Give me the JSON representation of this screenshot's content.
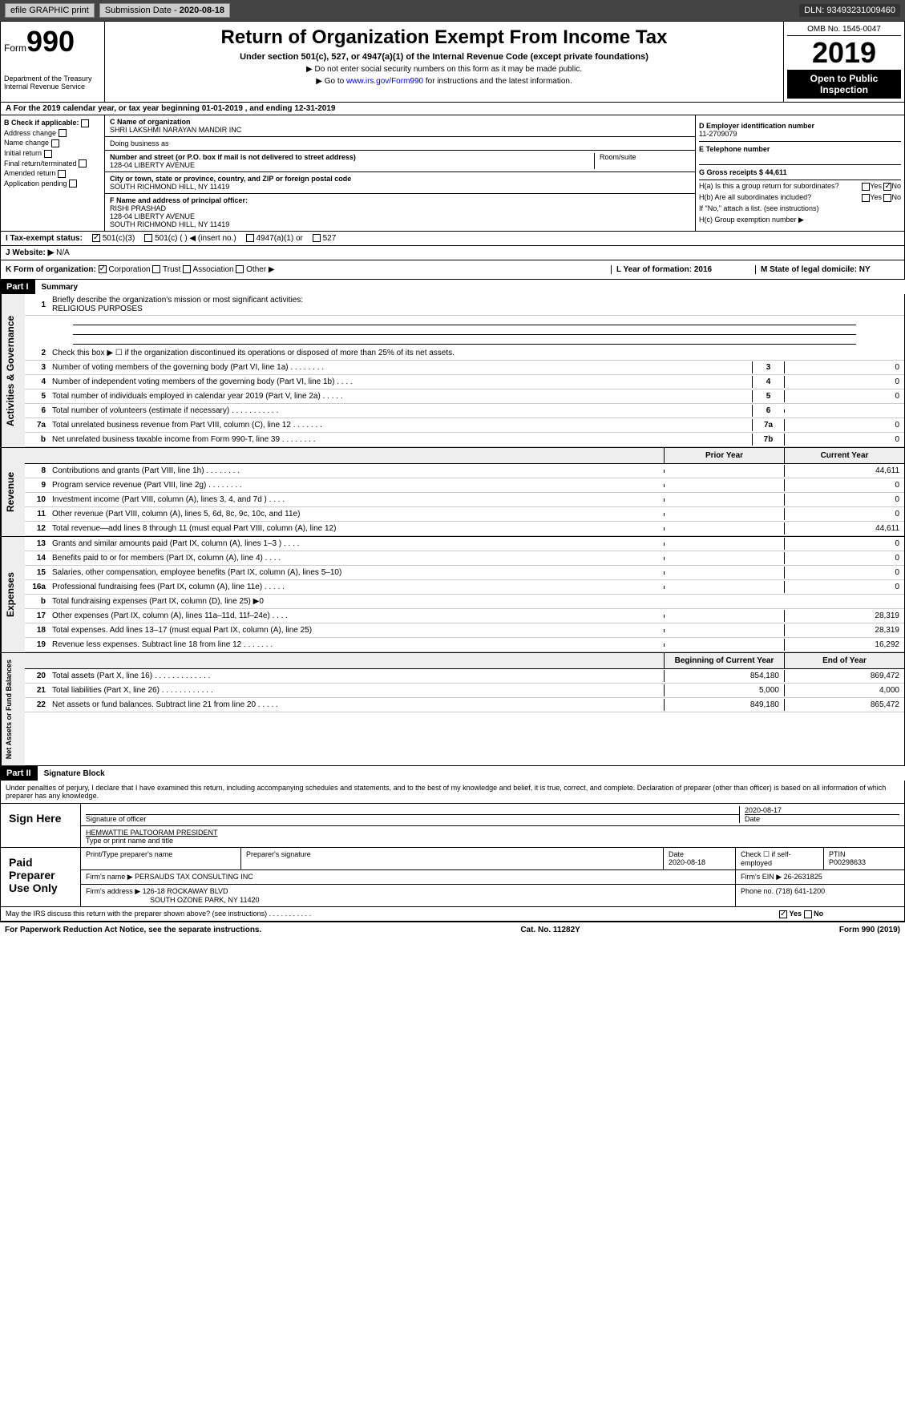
{
  "header": {
    "efile": "efile GRAPHIC print",
    "subdate_label": "Submission Date - ",
    "subdate": "2020-08-18",
    "dln": "DLN: 93493231009460"
  },
  "formtop": {
    "form": "Form",
    "num": "990",
    "dept": "Department of the Treasury\nInternal Revenue Service",
    "title": "Return of Organization Exempt From Income Tax",
    "sub": "Under section 501(c), 527, or 4947(a)(1) of the Internal Revenue Code (except private foundations)",
    "note1": "▶ Do not enter social security numbers on this form as it may be made public.",
    "note2_pre": "▶ Go to ",
    "note2_link": "www.irs.gov/Form990",
    "note2_post": " for instructions and the latest information.",
    "omb": "OMB No. 1545-0047",
    "year": "2019",
    "open": "Open to Public Inspection"
  },
  "rowA": "A  For the 2019 calendar year, or tax year beginning 01-01-2019    , and ending 12-31-2019",
  "colB": {
    "title": "B Check if applicable:",
    "items": [
      "Address change",
      "Name change",
      "Initial return",
      "Final return/terminated",
      "Amended return",
      "Application pending"
    ]
  },
  "colC": {
    "label_name": "C Name of organization",
    "name": "SHRI LAKSHMI NARAYAN MANDIR INC",
    "dba_label": "Doing business as",
    "street_label": "Number and street (or P.O. box if mail is not delivered to street address)",
    "street": "128-04 LIBERTY AVENUE",
    "room_label": "Room/suite",
    "city_label": "City or town, state or province, country, and ZIP or foreign postal code",
    "city": "SOUTH RICHMOND HILL, NY  11419",
    "f_label": "F Name and address of principal officer:",
    "f_name": "RISHI PRASHAD",
    "f_addr1": "128-04 LIBERTY AVENUE",
    "f_addr2": "SOUTH RICHMOND HILL, NY  11419"
  },
  "colD": {
    "d_label": "D Employer identification number",
    "d_val": "11-2709079",
    "e_label": "E Telephone number",
    "g_label": "G Gross receipts $ 44,611",
    "ha": "H(a)  Is this a group return for subordinates?",
    "hb": "H(b)  Are all subordinates included?",
    "hb_note": "If \"No,\" attach a list. (see instructions)",
    "hc": "H(c)  Group exemption number ▶",
    "yes": "Yes",
    "no": "No"
  },
  "status": {
    "label": "I   Tax-exempt status:",
    "opts": [
      "501(c)(3)",
      "501(c) (  ) ◀ (insert no.)",
      "4947(a)(1) or",
      "527"
    ]
  },
  "website": {
    "label": "J   Website: ▶",
    "val": "N/A"
  },
  "k": {
    "label": "K Form of organization:",
    "opts": [
      "Corporation",
      "Trust",
      "Association",
      "Other ▶"
    ],
    "l": "L Year of formation: 2016",
    "m": "M State of legal domicile: NY"
  },
  "part1": {
    "label": "Part I",
    "title": "Summary"
  },
  "summary": {
    "l1": "Briefly describe the organization's mission or most significant activities:",
    "l1val": "RELIGIOUS PURPOSES",
    "l2": "Check this box ▶ ☐  if the organization discontinued its operations or disposed of more than 25% of its net assets.",
    "lines": [
      {
        "n": "3",
        "t": "Number of voting members of the governing body (Part VI, line 1a)  .    .    .    .    .    .    .    .",
        "box": "3",
        "v": "0"
      },
      {
        "n": "4",
        "t": "Number of independent voting members of the governing body (Part VI, line 1b)  .    .    .    .",
        "box": "4",
        "v": "0"
      },
      {
        "n": "5",
        "t": "Total number of individuals employed in calendar year 2019 (Part V, line 2a)  .    .    .    .    .",
        "box": "5",
        "v": "0"
      },
      {
        "n": "6",
        "t": "Total number of volunteers (estimate if necessary)  .    .    .    .    .    .    .    .    .    .    .",
        "box": "6",
        "v": ""
      },
      {
        "n": "7a",
        "t": "Total unrelated business revenue from Part VIII, column (C), line 12  .    .    .    .    .    .    .",
        "box": "7a",
        "v": "0"
      },
      {
        "n": "b",
        "t": "Net unrelated business taxable income from Form 990-T, line 39  .    .    .    .    .    .    .    .",
        "box": "7b",
        "v": "0"
      }
    ],
    "prior": "Prior Year",
    "current": "Current Year",
    "revenue": [
      {
        "n": "8",
        "t": "Contributions and grants (Part VIII, line 1h)  .    .    .    .    .    .    .    .",
        "p": "",
        "c": "44,611"
      },
      {
        "n": "9",
        "t": "Program service revenue (Part VIII, line 2g)  .    .    .    .    .    .    .    .",
        "p": "",
        "c": "0"
      },
      {
        "n": "10",
        "t": "Investment income (Part VIII, column (A), lines 3, 4, and 7d )  .    .    .    .",
        "p": "",
        "c": "0"
      },
      {
        "n": "11",
        "t": "Other revenue (Part VIII, column (A), lines 5, 6d, 8c, 9c, 10c, and 11e)",
        "p": "",
        "c": "0"
      },
      {
        "n": "12",
        "t": "Total revenue—add lines 8 through 11 (must equal Part VIII, column (A), line 12)",
        "p": "",
        "c": "44,611"
      }
    ],
    "expenses": [
      {
        "n": "13",
        "t": "Grants and similar amounts paid (Part IX, column (A), lines 1–3 )  .    .    .    .",
        "p": "",
        "c": "0"
      },
      {
        "n": "14",
        "t": "Benefits paid to or for members (Part IX, column (A), line 4)  .    .    .    .",
        "p": "",
        "c": "0"
      },
      {
        "n": "15",
        "t": "Salaries, other compensation, employee benefits (Part IX, column (A), lines 5–10)",
        "p": "",
        "c": "0"
      },
      {
        "n": "16a",
        "t": "Professional fundraising fees (Part IX, column (A), line 11e)  .    .    .    .    .",
        "p": "",
        "c": "0"
      },
      {
        "n": "b",
        "t": "Total fundraising expenses (Part IX, column (D), line 25) ▶0",
        "p": "—",
        "c": "—"
      },
      {
        "n": "17",
        "t": "Other expenses (Part IX, column (A), lines 11a–11d, 11f–24e)  .    .    .    .",
        "p": "",
        "c": "28,319"
      },
      {
        "n": "18",
        "t": "Total expenses. Add lines 13–17 (must equal Part IX, column (A), line 25)",
        "p": "",
        "c": "28,319"
      },
      {
        "n": "19",
        "t": "Revenue less expenses. Subtract line 18 from line 12  .    .    .    .    .    .    .",
        "p": "",
        "c": "16,292"
      }
    ],
    "boy": "Beginning of Current Year",
    "eoy": "End of Year",
    "net": [
      {
        "n": "20",
        "t": "Total assets (Part X, line 16)  .    .    .    .    .    .    .    .    .    .    .    .    .",
        "p": "854,180",
        "c": "869,472"
      },
      {
        "n": "21",
        "t": "Total liabilities (Part X, line 26)  .    .    .    .    .    .    .    .    .    .    .    .",
        "p": "5,000",
        "c": "4,000"
      },
      {
        "n": "22",
        "t": "Net assets or fund balances. Subtract line 21 from line 20  .    .    .    .    .",
        "p": "849,180",
        "c": "865,472"
      }
    ]
  },
  "part2": {
    "label": "Part II",
    "title": "Signature Block"
  },
  "sig": {
    "perjury": "Under penalties of perjury, I declare that I have examined this return, including accompanying schedules and statements, and to the best of my knowledge and belief, it is true, correct, and complete. Declaration of preparer (other than officer) is based on all information of which preparer has any knowledge.",
    "here": "Sign Here",
    "sig_officer": "Signature of officer",
    "date": "Date",
    "date_val": "2020-08-17",
    "name": "HEMWATTIE PALTOORAM PRESIDENT",
    "name_label": "Type or print name and title"
  },
  "prep": {
    "label": "Paid Preparer Use Only",
    "h1": "Print/Type preparer's name",
    "h2": "Preparer's signature",
    "h3": "Date",
    "h3v": "2020-08-18",
    "h4": "Check ☐ if self-employed",
    "h5": "PTIN",
    "h5v": "P00298633",
    "firm_label": "Firm's name   ▶",
    "firm": "PERSAUDS TAX CONSULTING INC",
    "ein_label": "Firm's EIN ▶",
    "ein": "26-2631825",
    "addr_label": "Firm's address ▶",
    "addr1": "126-18 ROCKAWAY BLVD",
    "addr2": "SOUTH OZONE PARK, NY 11420",
    "phone_label": "Phone no.",
    "phone": "(718) 641-1200",
    "discuss": "May the IRS discuss this return with the preparer shown above? (see instructions)  .    .    .    .    .    .    .    .    .    .    .",
    "discuss_yes": "Yes",
    "discuss_no": "No"
  },
  "footer": {
    "left": "For Paperwork Reduction Act Notice, see the separate instructions.",
    "mid": "Cat. No. 11282Y",
    "right": "Form 990 (2019)"
  },
  "sides": {
    "gov": "Activities & Governance",
    "rev": "Revenue",
    "exp": "Expenses",
    "net": "Net Assets or Fund Balances"
  }
}
